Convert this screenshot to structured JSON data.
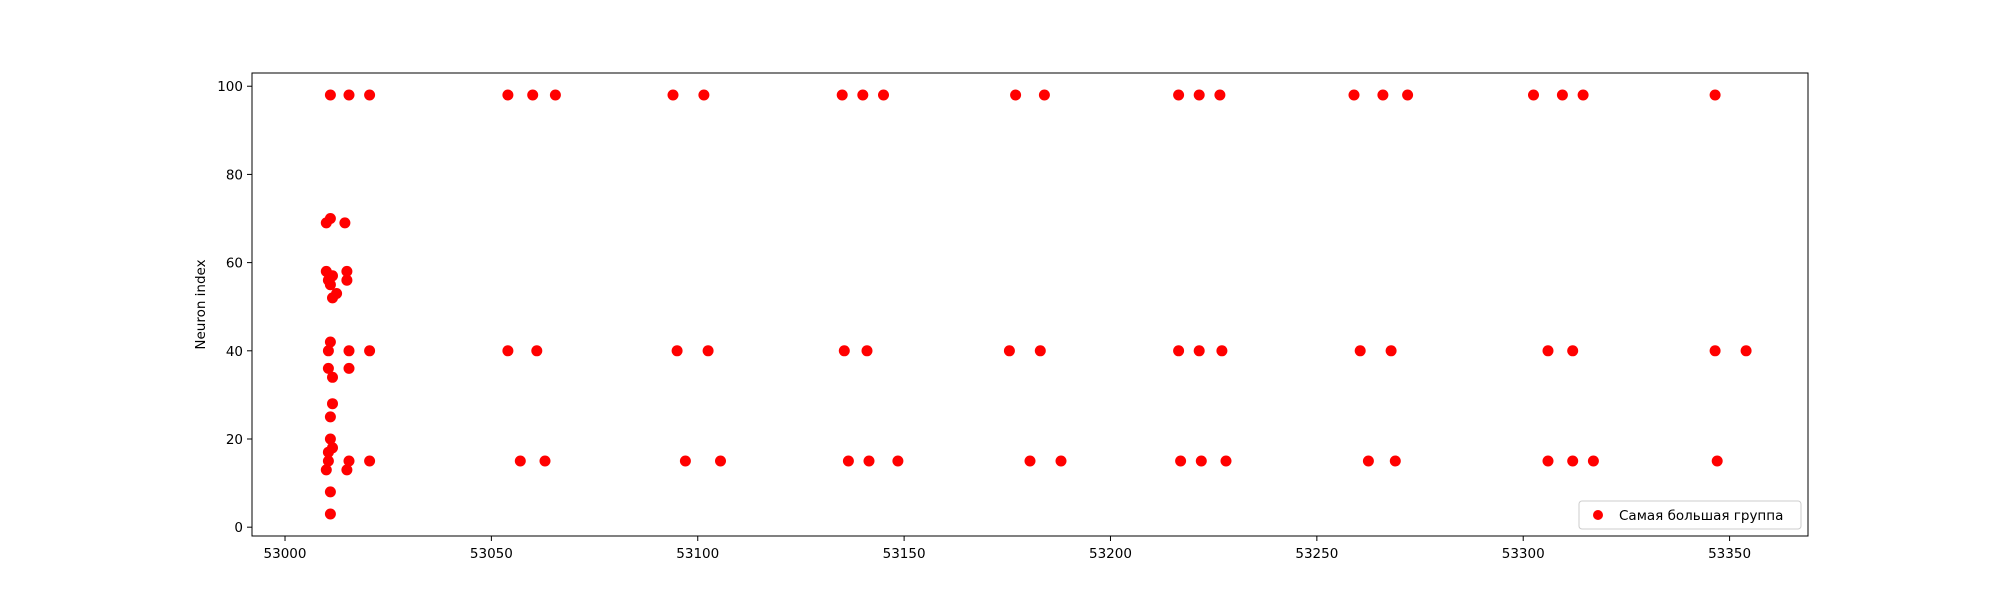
{
  "chart_data": {
    "type": "scatter",
    "title": "",
    "xlabel": "",
    "ylabel": "Neuron index",
    "xlim": [
      52992,
      53369
    ],
    "ylim": [
      -2,
      103
    ],
    "xticks": [
      53000,
      53050,
      53100,
      53150,
      53200,
      53250,
      53300,
      53350
    ],
    "yticks": [
      0,
      20,
      40,
      60,
      80,
      100
    ],
    "grid": false,
    "legend_position": "lower-right",
    "series": [
      {
        "name": "Самая большая группа",
        "color": "#ff0000",
        "points": [
          [
            53011,
            98
          ],
          [
            53015.5,
            98
          ],
          [
            53020.5,
            98
          ],
          [
            53054,
            98
          ],
          [
            53060,
            98
          ],
          [
            53065.5,
            98
          ],
          [
            53094,
            98
          ],
          [
            53101.5,
            98
          ],
          [
            53135,
            98
          ],
          [
            53140,
            98
          ],
          [
            53145,
            98
          ],
          [
            53177,
            98
          ],
          [
            53184,
            98
          ],
          [
            53216.5,
            98
          ],
          [
            53221.5,
            98
          ],
          [
            53226.5,
            98
          ],
          [
            53259,
            98
          ],
          [
            53266,
            98
          ],
          [
            53272,
            98
          ],
          [
            53302.5,
            98
          ],
          [
            53309.5,
            98
          ],
          [
            53314.5,
            98
          ],
          [
            53346.5,
            98
          ],
          [
            53010,
            69
          ],
          [
            53011,
            70
          ],
          [
            53014.5,
            69
          ],
          [
            53010,
            58
          ],
          [
            53010.5,
            56
          ],
          [
            53011.5,
            57
          ],
          [
            53011,
            55
          ],
          [
            53012.5,
            53
          ],
          [
            53011.5,
            52
          ],
          [
            53015,
            58
          ],
          [
            53015,
            56
          ],
          [
            53011,
            42
          ],
          [
            53010.5,
            40
          ],
          [
            53015.5,
            40
          ],
          [
            53020.5,
            40
          ],
          [
            53010.5,
            36
          ],
          [
            53015.5,
            36
          ],
          [
            53011.5,
            34
          ],
          [
            53054,
            40
          ],
          [
            53061,
            40
          ],
          [
            53095,
            40
          ],
          [
            53102.5,
            40
          ],
          [
            53135.5,
            40
          ],
          [
            53141,
            40
          ],
          [
            53175.5,
            40
          ],
          [
            53183,
            40
          ],
          [
            53216.5,
            40
          ],
          [
            53221.5,
            40
          ],
          [
            53227,
            40
          ],
          [
            53260.5,
            40
          ],
          [
            53268,
            40
          ],
          [
            53306,
            40
          ],
          [
            53312,
            40
          ],
          [
            53346.5,
            40
          ],
          [
            53354,
            40
          ],
          [
            53011.5,
            28
          ],
          [
            53011,
            25
          ],
          [
            53011,
            20
          ],
          [
            53011.5,
            18
          ],
          [
            53010.5,
            17
          ],
          [
            53010.5,
            15
          ],
          [
            53015.5,
            15
          ],
          [
            53020.5,
            15
          ],
          [
            53010,
            13
          ],
          [
            53015,
            13
          ],
          [
            53011,
            8
          ],
          [
            53011,
            3
          ],
          [
            53057,
            15
          ],
          [
            53063,
            15
          ],
          [
            53097,
            15
          ],
          [
            53105.5,
            15
          ],
          [
            53136.5,
            15
          ],
          [
            53141.5,
            15
          ],
          [
            53148.5,
            15
          ],
          [
            53180.5,
            15
          ],
          [
            53188,
            15
          ],
          [
            53217,
            15
          ],
          [
            53222,
            15
          ],
          [
            53228,
            15
          ],
          [
            53262.5,
            15
          ],
          [
            53269,
            15
          ],
          [
            53306,
            15
          ],
          [
            53312,
            15
          ],
          [
            53317,
            15
          ],
          [
            53347,
            15
          ]
        ]
      }
    ]
  }
}
